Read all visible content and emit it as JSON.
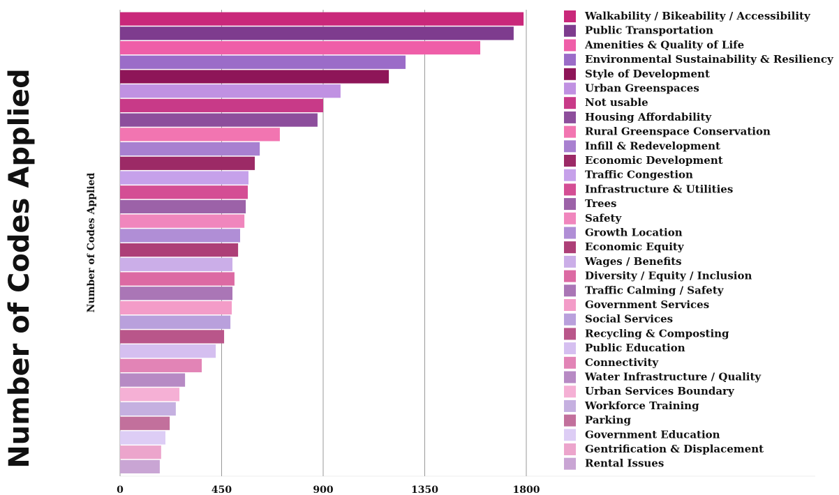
{
  "chart_data": {
    "type": "barh",
    "title": "Number of Codes Applied",
    "ylabel": "Number of Codes Applied",
    "categories": [
      "Walkability / Bikeability / Accessibility",
      "Public Transportation",
      "Amenities & Quality of Life",
      "Environmental Sustainability & Resiliency",
      "Style of Development",
      "Urban Greenspaces",
      "Not usable",
      "Housing Affordability",
      "Rural Greenspace Conservation",
      "Infill & Redevelopment",
      "Economic Development",
      "Traffic Congestion",
      "Infrastructure & Utilities",
      "Trees",
      "Safety",
      "Growth Location",
      "Economic Equity",
      "Wages / Benefits",
      "Diversity / Equity / Inclusion",
      "Traffic Calming / Safety",
      "Government Services",
      "Social Services",
      "Recycling & Composting",
      "Public Education",
      "Connectivity",
      "Water Infrastructure / Quality",
      "Urban Services Boundary",
      "Workforce Training",
      "Parking",
      "Government Education",
      "Gentrification & Displacement",
      "Rental Issues"
    ],
    "values": [
      1788,
      1744,
      1596,
      1265,
      1191,
      977,
      900,
      875,
      708,
      619,
      597,
      569,
      566,
      557,
      551,
      532,
      523,
      498,
      507,
      498,
      495,
      489,
      461,
      424,
      362,
      288,
      263,
      247,
      220,
      201,
      182,
      176
    ],
    "colors": [
      "#c9287a",
      "#7e3c8e",
      "#ef5ea8",
      "#9b6cc8",
      "#8e1558",
      "#c091e2",
      "#c83a88",
      "#8d4e9c",
      "#f275b1",
      "#a880d0",
      "#9c2a66",
      "#c6a1ea",
      "#d44e94",
      "#9c62a8",
      "#f086bd",
      "#b08ed6",
      "#ad3f77",
      "#cbaee8",
      "#dc6aa3",
      "#aa76b6",
      "#f39cc8",
      "#b9a0dc",
      "#b9568a",
      "#d5bff0",
      "#e284b6",
      "#b78ac4",
      "#f5b0d5",
      "#c5b0e0",
      "#c2709c",
      "#ddcdf5",
      "#eca5cc",
      "#c9a5d4"
    ],
    "xlim": [
      0,
      1800
    ],
    "xticks": [
      0,
      450,
      900,
      1350,
      1800
    ],
    "grid": true,
    "legend": "right"
  }
}
